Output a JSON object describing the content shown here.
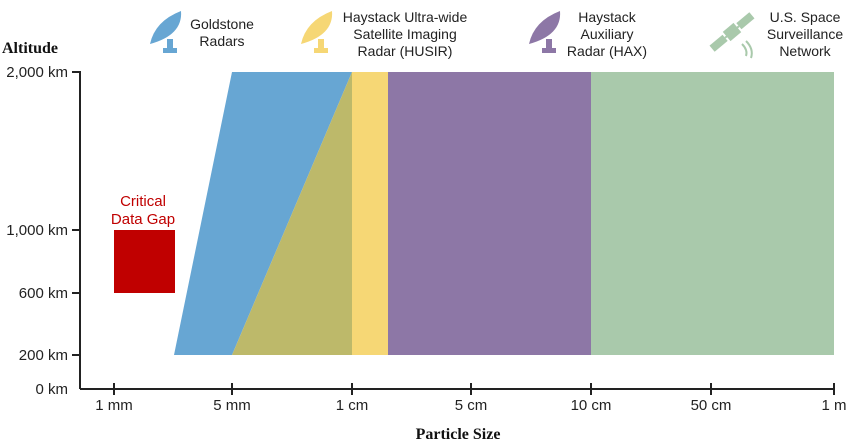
{
  "axes": {
    "y_title": "Altitude",
    "x_title": "Particle Size",
    "y_ticks": [
      "2,000 km",
      "1,000 km",
      "600 km",
      "200 km",
      "0 km"
    ],
    "x_ticks": [
      "1 mm",
      "5 mm",
      "1 cm",
      "5 cm",
      "10 cm",
      "50 cm",
      "1 m"
    ]
  },
  "legend": {
    "goldstone": [
      "Goldstone",
      "Radars"
    ],
    "husir": [
      "Haystack Ultra-wide",
      "Satellite Imaging",
      "Radar (HUSIR)"
    ],
    "hax": [
      "Haystack",
      "Auxiliary",
      "Radar (HAX)"
    ],
    "ssn": [
      "U.S. Space",
      "Surveillance",
      "Network"
    ]
  },
  "gap": [
    "Critical",
    "Data Gap"
  ],
  "colors": {
    "goldstone": "#67a6d3",
    "overlap": "#bdb96a",
    "husir": "#f6d775",
    "hax": "#8d77a6",
    "ssn": "#a9c9ab",
    "gap": "#c00000"
  },
  "icons": {
    "goldstone": "radar-dish-icon",
    "husir": "radar-dish-icon",
    "hax": "radar-dish-icon",
    "ssn": "satellite-icon"
  }
}
